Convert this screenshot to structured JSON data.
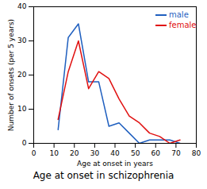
{
  "chart_data": {
    "type": "line",
    "title": "Age at onset in schizophrenia",
    "x_label": "Age at onset in years",
    "y_label": "Number of onsets (per 5 years)",
    "x": [
      12,
      17,
      22,
      27,
      32,
      37,
      42,
      47,
      52,
      57,
      62,
      67,
      72
    ],
    "series": [
      {
        "name": "male",
        "color": "#1f5fbf",
        "values": [
          4,
          31,
          35,
          18,
          18,
          5,
          6,
          3,
          0,
          1,
          1,
          1,
          0
        ]
      },
      {
        "name": "female",
        "color": "#e01010",
        "values": [
          7,
          21,
          30,
          16,
          21,
          19,
          13,
          8,
          6,
          3,
          2,
          0,
          1
        ]
      }
    ],
    "xlim": [
      0,
      80
    ],
    "xticks": [
      0,
      10,
      20,
      30,
      40,
      50,
      60,
      70,
      80
    ],
    "ylim": [
      0,
      40
    ],
    "yticks": [
      0,
      10,
      20,
      30,
      40
    ],
    "legend": "top-right"
  }
}
